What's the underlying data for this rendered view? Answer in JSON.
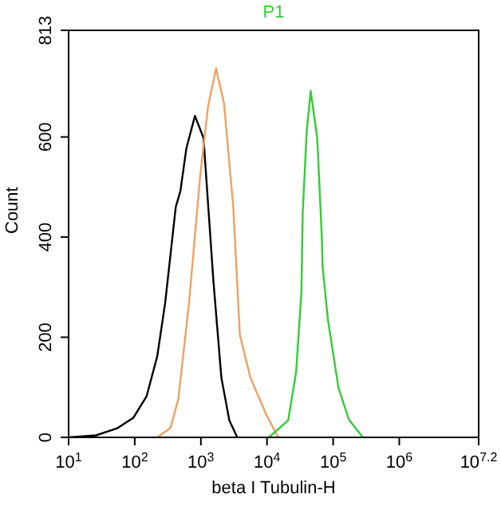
{
  "chart_data": {
    "type": "line",
    "title": "P1",
    "xlabel": "beta I Tubulin-H",
    "ylabel": "Count",
    "log": "x",
    "xlim": [
      10,
      15848932
    ],
    "xticks": [
      {
        "value": 10,
        "label": "10$^{1}$"
      },
      {
        "value": 100,
        "label": "10$^{2}$"
      },
      {
        "value": 1000,
        "label": "10$^{3}$"
      },
      {
        "value": 10000,
        "label": "10$^{4}$"
      },
      {
        "value": 100000,
        "label": "10$^{5}$"
      },
      {
        "value": 1000000,
        "label": "10$^{6}$"
      },
      {
        "value": 15848932,
        "label": "10$^{7.2}$"
      }
    ],
    "ylim": [
      0,
      813
    ],
    "yticks": [
      0,
      200,
      400,
      600,
      813
    ],
    "marker": "none",
    "line_style": "solid",
    "series": [
      {
        "color": "#000000",
        "x": [
          10,
          26,
          54,
          95,
          151,
          219,
          288,
          417,
          490,
          603,
          813,
          1096,
          1549,
          2042,
          2692,
          3548
        ],
        "values": [
          0,
          4,
          18,
          39,
          82,
          162,
          268,
          460,
          492,
          577,
          642,
          598,
          311,
          119,
          34,
          0
        ]
      },
      {
        "color": "#f0a060",
        "x": [
          219,
          347,
          457,
          661,
          977,
          1288,
          1698,
          2239,
          3090,
          3890,
          5623,
          9772,
          14791
        ],
        "values": [
          0,
          19,
          77,
          268,
          523,
          662,
          737,
          667,
          460,
          204,
          119,
          45,
          0
        ]
      },
      {
        "color": "#33cc33",
        "x": [
          10715,
          20893,
          27542,
          33113,
          34674,
          39811,
          45709,
          57544,
          67608,
          69183,
          83176,
          120226,
          173780,
          281838
        ],
        "values": [
          0,
          34,
          130,
          290,
          450,
          610,
          692,
          597,
          396,
          342,
          236,
          99,
          35,
          0
        ]
      }
    ]
  }
}
